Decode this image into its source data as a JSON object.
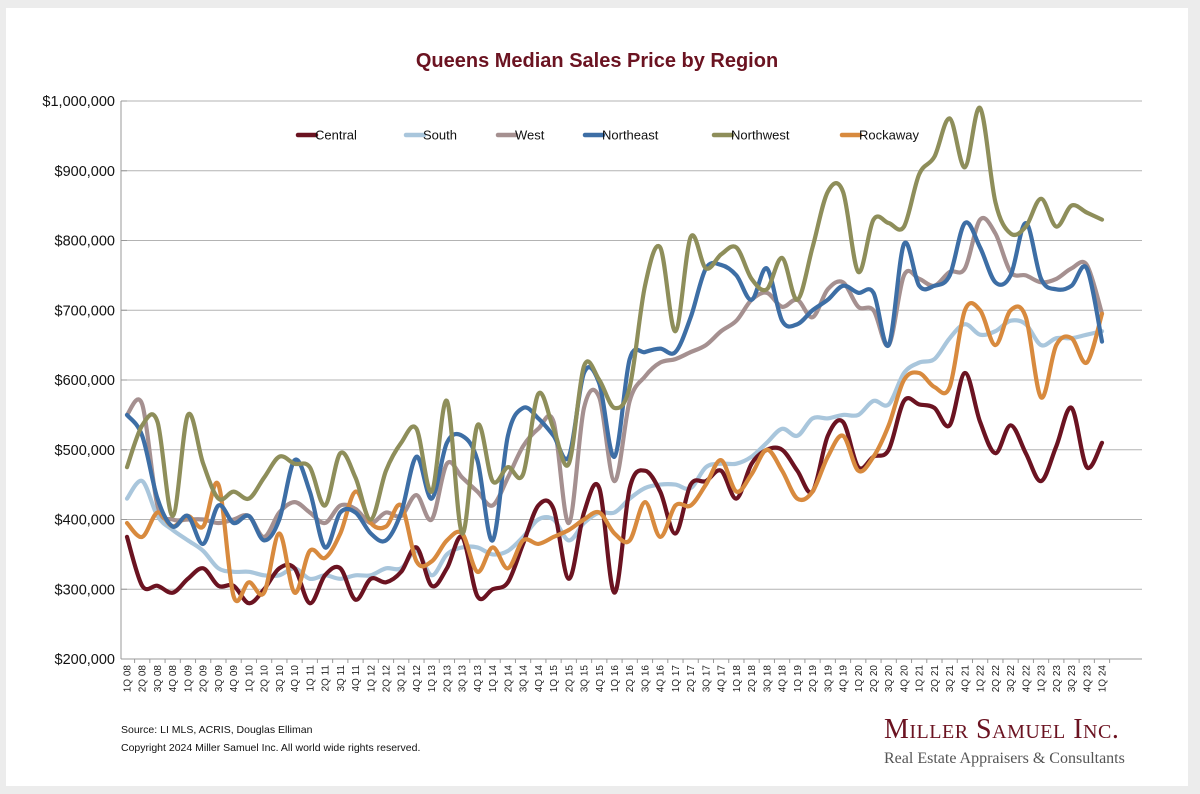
{
  "chart_data": {
    "type": "line",
    "title": "Queens Median Sales Price by Region",
    "xlabel": "",
    "ylabel": "",
    "ylim": [
      200000,
      1000000
    ],
    "yticks": [
      200000,
      300000,
      400000,
      500000,
      600000,
      700000,
      800000,
      900000,
      1000000
    ],
    "ytick_labels": [
      "$200,000",
      "$300,000",
      "$400,000",
      "$500,000",
      "$600,000",
      "$700,000",
      "$800,000",
      "$900,000",
      "$1,000,000"
    ],
    "grid": true,
    "legend_position": "top-center",
    "categories": [
      "1Q 08",
      "2Q 08",
      "3Q 08",
      "4Q 08",
      "1Q 09",
      "2Q 09",
      "3Q 09",
      "4Q 09",
      "1Q 10",
      "2Q 10",
      "3Q 10",
      "4Q 10",
      "1Q 11",
      "2Q 11",
      "3Q 11",
      "4Q 11",
      "1Q 12",
      "2Q 12",
      "3Q 12",
      "4Q 12",
      "1Q 13",
      "2Q 13",
      "3Q 13",
      "4Q 13",
      "1Q 14",
      "2Q 14",
      "3Q 14",
      "4Q 14",
      "1Q 15",
      "2Q 15",
      "3Q 15",
      "4Q 15",
      "1Q 16",
      "2Q 16",
      "3Q 16",
      "4Q 16",
      "1Q 17",
      "2Q 17",
      "3Q 17",
      "4Q 17",
      "1Q 18",
      "2Q 18",
      "3Q 18",
      "4Q 18",
      "1Q 19",
      "2Q 19",
      "3Q 19",
      "4Q 19",
      "1Q 20",
      "2Q 20",
      "3Q 20",
      "4Q 20",
      "1Q 21",
      "2Q 21",
      "3Q 21",
      "4Q 21",
      "1Q 22",
      "2Q 22",
      "3Q 22",
      "4Q 22",
      "1Q 23",
      "2Q 23",
      "3Q 23",
      "4Q 23",
      "1Q 24"
    ],
    "series": [
      {
        "name": "Central",
        "color": "#6b1321",
        "values": [
          375000,
          305000,
          305000,
          295000,
          315000,
          330000,
          305000,
          305000,
          280000,
          300000,
          330000,
          330000,
          280000,
          320000,
          330000,
          285000,
          315000,
          310000,
          325000,
          360000,
          305000,
          330000,
          375000,
          290000,
          300000,
          310000,
          365000,
          420000,
          415000,
          315000,
          410000,
          445000,
          295000,
          445000,
          470000,
          440000,
          380000,
          450000,
          455000,
          470000,
          430000,
          480000,
          500000,
          500000,
          470000,
          440000,
          520000,
          540000,
          475000,
          490000,
          500000,
          570000,
          565000,
          560000,
          535000,
          610000,
          540000,
          495000,
          535000,
          495000,
          455000,
          505000,
          560000,
          475000,
          510000
        ]
      },
      {
        "name": "South",
        "color": "#a9c6dc",
        "values": [
          430000,
          455000,
          405000,
          385000,
          370000,
          355000,
          330000,
          325000,
          325000,
          320000,
          320000,
          330000,
          315000,
          320000,
          315000,
          320000,
          320000,
          330000,
          330000,
          355000,
          320000,
          350000,
          360000,
          360000,
          350000,
          355000,
          375000,
          400000,
          400000,
          370000,
          395000,
          410000,
          410000,
          430000,
          445000,
          450000,
          450000,
          445000,
          475000,
          480000,
          480000,
          490000,
          510000,
          530000,
          520000,
          545000,
          545000,
          550000,
          550000,
          570000,
          565000,
          610000,
          625000,
          630000,
          660000,
          680000,
          665000,
          670000,
          685000,
          680000,
          650000,
          660000,
          660000,
          665000,
          670000
        ]
      },
      {
        "name": "West",
        "color": "#a59090",
        "values": [
          550000,
          565000,
          420000,
          400000,
          400000,
          400000,
          395000,
          400000,
          405000,
          375000,
          410000,
          425000,
          410000,
          395000,
          420000,
          415000,
          395000,
          410000,
          405000,
          435000,
          400000,
          480000,
          460000,
          440000,
          420000,
          460000,
          505000,
          530000,
          540000,
          395000,
          560000,
          575000,
          455000,
          570000,
          605000,
          625000,
          630000,
          640000,
          650000,
          670000,
          685000,
          715000,
          725000,
          705000,
          715000,
          690000,
          730000,
          740000,
          705000,
          700000,
          650000,
          750000,
          745000,
          735000,
          755000,
          760000,
          830000,
          810000,
          755000,
          750000,
          740000,
          745000,
          760000,
          765000,
          695000
        ]
      },
      {
        "name": "Northeast",
        "color": "#3d6ea5",
        "values": [
          550000,
          520000,
          430000,
          390000,
          405000,
          365000,
          420000,
          395000,
          405000,
          370000,
          400000,
          485000,
          440000,
          360000,
          410000,
          410000,
          380000,
          370000,
          410000,
          490000,
          430000,
          510000,
          520000,
          485000,
          370000,
          520000,
          560000,
          545000,
          520000,
          490000,
          610000,
          595000,
          490000,
          630000,
          640000,
          645000,
          640000,
          690000,
          760000,
          765000,
          750000,
          715000,
          760000,
          685000,
          680000,
          700000,
          715000,
          735000,
          725000,
          725000,
          650000,
          795000,
          735000,
          735000,
          750000,
          825000,
          790000,
          740000,
          750000,
          825000,
          745000,
          730000,
          735000,
          760000,
          655000
        ]
      },
      {
        "name": "Northwest",
        "color": "#8e8e5a",
        "values": [
          475000,
          535000,
          540000,
          405000,
          550000,
          480000,
          430000,
          440000,
          430000,
          460000,
          490000,
          480000,
          475000,
          420000,
          495000,
          460000,
          400000,
          470000,
          510000,
          530000,
          440000,
          570000,
          380000,
          535000,
          455000,
          475000,
          465000,
          580000,
          530000,
          480000,
          620000,
          600000,
          560000,
          590000,
          735000,
          790000,
          670000,
          805000,
          760000,
          780000,
          790000,
          745000,
          730000,
          775000,
          715000,
          790000,
          870000,
          870000,
          755000,
          830000,
          825000,
          820000,
          895000,
          920000,
          975000,
          905000,
          990000,
          855000,
          810000,
          820000,
          860000,
          820000,
          850000,
          840000,
          830000
        ]
      },
      {
        "name": "Rockaway",
        "color": "#d88a3e",
        "values": [
          395000,
          375000,
          410000,
          390000,
          405000,
          390000,
          450000,
          290000,
          310000,
          295000,
          380000,
          295000,
          355000,
          345000,
          380000,
          440000,
          395000,
          390000,
          420000,
          340000,
          340000,
          370000,
          380000,
          325000,
          360000,
          330000,
          370000,
          365000,
          375000,
          385000,
          400000,
          410000,
          380000,
          370000,
          425000,
          375000,
          420000,
          420000,
          450000,
          485000,
          440000,
          465000,
          500000,
          470000,
          430000,
          440000,
          490000,
          520000,
          470000,
          490000,
          535000,
          600000,
          610000,
          590000,
          590000,
          700000,
          700000,
          650000,
          700000,
          690000,
          575000,
          650000,
          660000,
          625000,
          695000
        ]
      }
    ]
  },
  "footer": {
    "source": "Source: LI MLS, ACRIS, Douglas Elliman",
    "copyright": "Copyright 2024 Miller Samuel Inc.  All world wide rights reserved."
  },
  "brand": {
    "name": "Miller Samuel Inc.",
    "tagline": "Real Estate Appraisers & Consultants"
  }
}
